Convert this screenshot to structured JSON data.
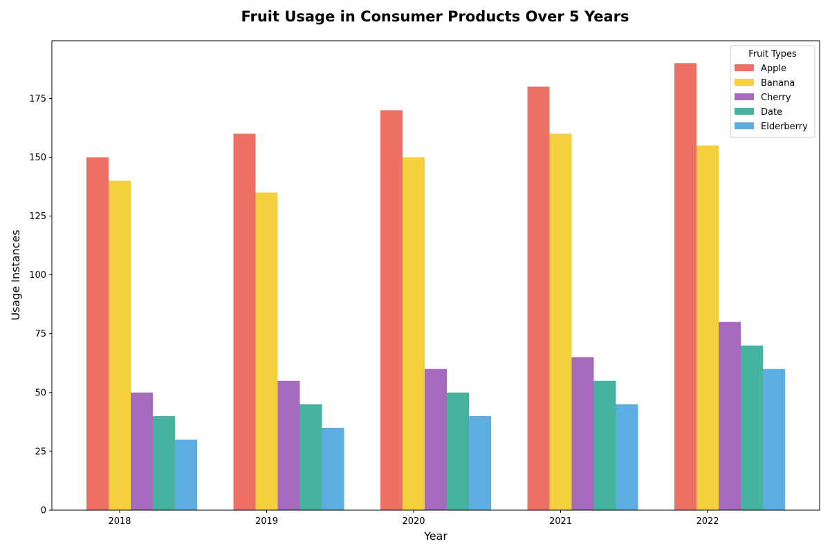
{
  "chart_data": {
    "type": "bar",
    "title": "Fruit Usage in Consumer Products Over 5 Years",
    "xlabel": "Year",
    "ylabel": "Usage Instances",
    "categories": [
      "2018",
      "2019",
      "2020",
      "2021",
      "2022"
    ],
    "series": [
      {
        "name": "Apple",
        "color": "#EC7063",
        "values": [
          150,
          160,
          170,
          180,
          190
        ]
      },
      {
        "name": "Banana",
        "color": "#F4D03F",
        "values": [
          140,
          135,
          150,
          160,
          155
        ]
      },
      {
        "name": "Cherry",
        "color": "#A569BD",
        "values": [
          50,
          55,
          60,
          65,
          80
        ]
      },
      {
        "name": "Date",
        "color": "#45B39D",
        "values": [
          40,
          45,
          50,
          55,
          70
        ]
      },
      {
        "name": "Elderberry",
        "color": "#5DADE2",
        "values": [
          30,
          35,
          40,
          45,
          60
        ]
      }
    ],
    "yticks": [
      0,
      25,
      50,
      75,
      100,
      125,
      150,
      175
    ],
    "ylim": [
      0,
      199.5
    ],
    "grid": false,
    "legend": {
      "title": "Fruit Types",
      "placement": "top-right"
    }
  }
}
